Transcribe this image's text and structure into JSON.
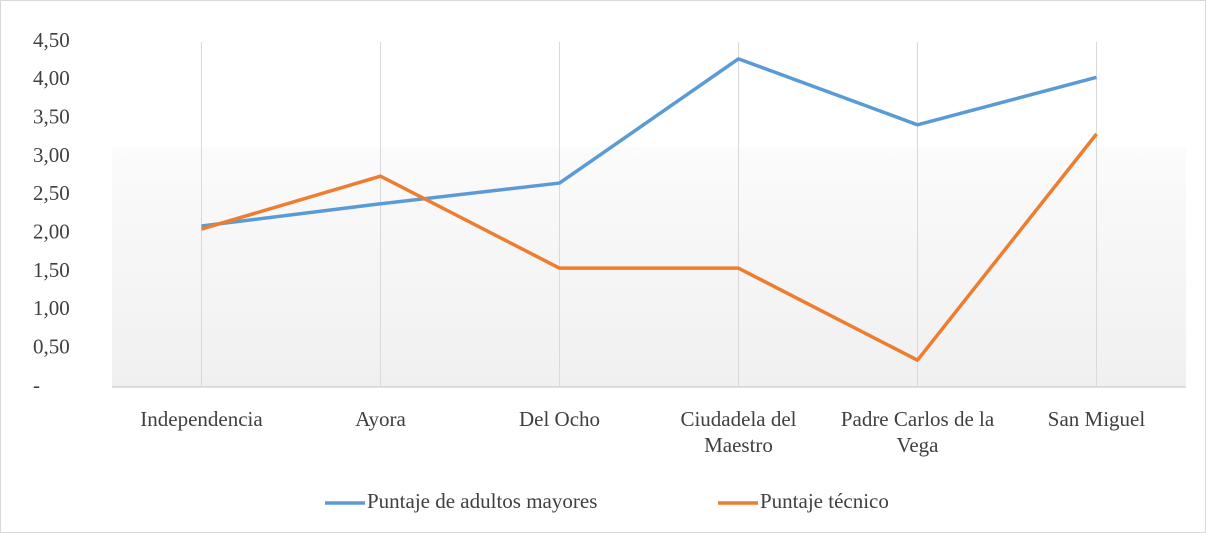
{
  "chart_data": {
    "type": "line",
    "categories": [
      "Independencia",
      "Ayora",
      "Del Ocho",
      "Ciudadela del Maestro",
      "Padre Carlos de la Vega",
      "San Miguel"
    ],
    "series": [
      {
        "name": "Puntaje de adultos mayores",
        "color": "#5b9bd5",
        "values": [
          2.1,
          2.39,
          2.66,
          4.28,
          3.42,
          4.04
        ]
      },
      {
        "name": "Puntaje técnico",
        "color": "#ed7d31",
        "values": [
          2.06,
          2.75,
          1.55,
          1.55,
          0.35,
          3.3
        ]
      }
    ],
    "ylim": [
      0,
      4.5
    ],
    "yticks": [
      {
        "value": 0,
        "label": "-"
      },
      {
        "value": 0.5,
        "label": "0,50"
      },
      {
        "value": 1,
        "label": "1,00"
      },
      {
        "value": 1.5,
        "label": "1,50"
      },
      {
        "value": 2,
        "label": "2,00"
      },
      {
        "value": 2.5,
        "label": "2,50"
      },
      {
        "value": 3,
        "label": "3,00"
      },
      {
        "value": 3.5,
        "label": "3,50"
      },
      {
        "value": 4,
        "label": "4,00"
      },
      {
        "value": 4.5,
        "label": "4,50"
      }
    ],
    "grid": true,
    "legend": "bottom"
  }
}
